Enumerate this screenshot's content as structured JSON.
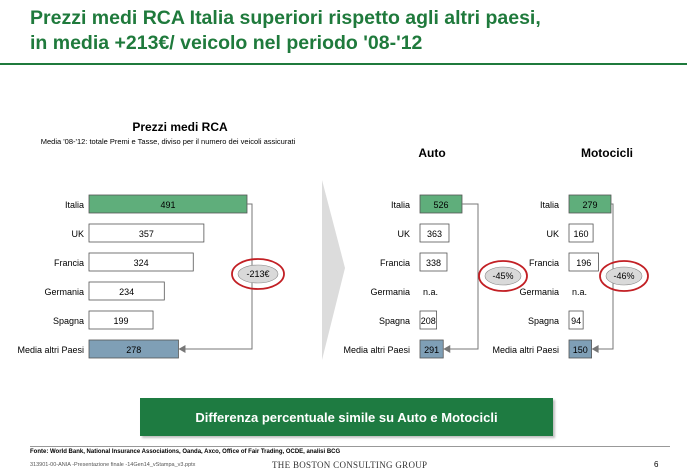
{
  "page": {
    "title_line1": "Prezzi medi RCA Italia superiori rispetto agli altri paesi,",
    "title_line2": "in media +213€/ veicolo nel periodo '08-'12",
    "banner": "Differenza percentuale simile su Auto e Motocicli",
    "source": "Fonte: World Bank, National Insurance Associations, Oanda, Axco, Office of Fair Trading, OCDE, analisi BCG",
    "file_ref": "313901-00-ANIA -Presentazione finale -14Gen14_vStampa_v3.pptx",
    "logo": "THE BOSTON CONSULTING GROUP",
    "page_number": "6"
  },
  "chart_data": [
    {
      "type": "bar",
      "orientation": "horizontal",
      "title": "Prezzi medi RCA",
      "subtitle": "Media '08-'12: totale Premi e Tasse, diviso per il numero dei veicoli assicurati",
      "categories": [
        "Italia",
        "UK",
        "Francia",
        "Germania",
        "Spagna",
        "Media altri Paesi"
      ],
      "values": [
        491,
        357,
        324,
        234,
        199,
        278
      ],
      "labels": [
        "491",
        "357",
        "324",
        "234",
        "199",
        "278"
      ],
      "annotation": "-213€",
      "colors": {
        "Italia": "#5fae7b",
        "Media altri Paesi": "#7f9fb6",
        "default": "#ffffff"
      }
    },
    {
      "type": "bar",
      "orientation": "horizontal",
      "title": "Auto",
      "categories": [
        "Italia",
        "UK",
        "Francia",
        "Germania",
        "Spagna",
        "Media altri Paesi"
      ],
      "values": [
        526,
        363,
        338,
        null,
        208,
        291
      ],
      "labels": [
        "526",
        "363",
        "338",
        "n.a.",
        "208",
        "291"
      ],
      "annotation": "-45%",
      "colors": {
        "Italia": "#5fae7b",
        "Media altri Paesi": "#7f9fb6",
        "default": "#ffffff"
      }
    },
    {
      "type": "bar",
      "orientation": "horizontal",
      "title": "Motocicli",
      "categories": [
        "Italia",
        "UK",
        "Francia",
        "Germania",
        "Spagna",
        "Media altri Paesi"
      ],
      "values": [
        279,
        160,
        196,
        null,
        94,
        150
      ],
      "labels": [
        "279",
        "160",
        "196",
        "n.a.",
        "94",
        "150"
      ],
      "annotation": "-46%",
      "colors": {
        "Italia": "#5fae7b",
        "Media altri Paesi": "#7f9fb6",
        "default": "#ffffff"
      }
    }
  ]
}
